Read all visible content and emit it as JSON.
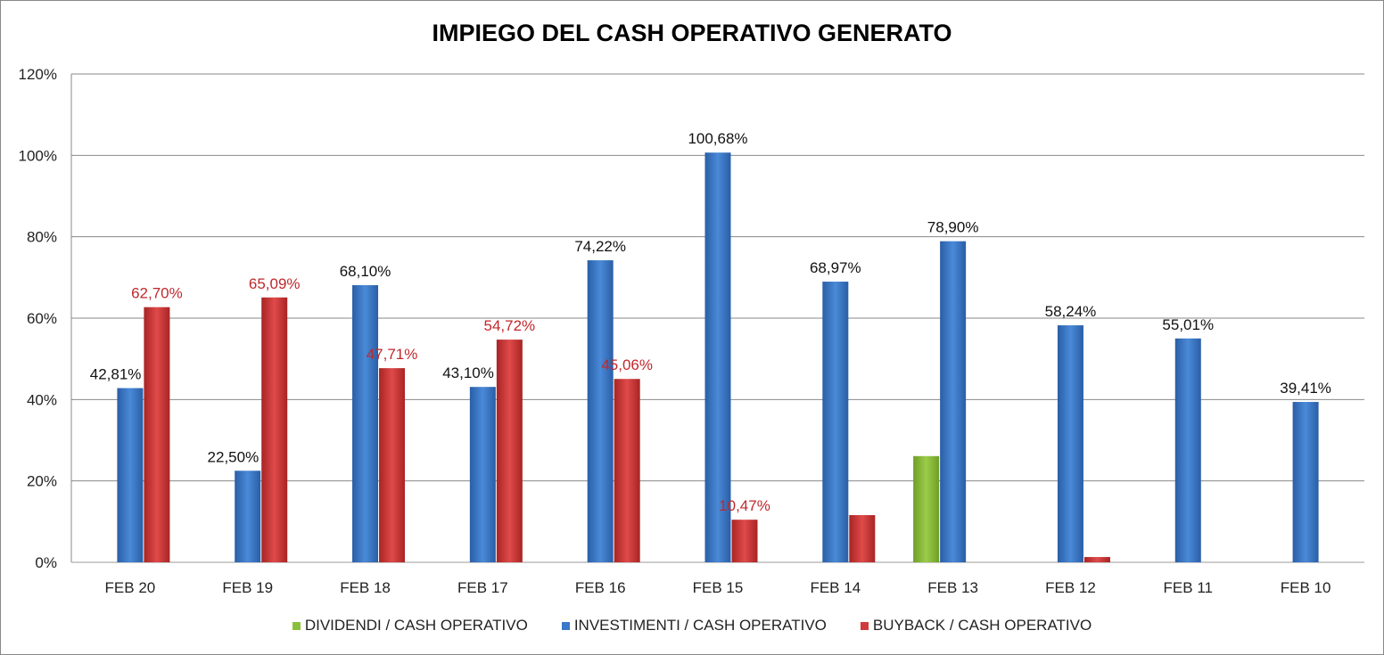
{
  "chart_data": {
    "type": "bar",
    "title": "IMPIEGO DEL CASH OPERATIVO GENERATO",
    "categories": [
      "FEB 20",
      "FEB 19",
      "FEB 18",
      "FEB 17",
      "FEB 16",
      "FEB 15",
      "FEB 14",
      "FEB 13",
      "FEB 12",
      "FEB 11",
      "FEB 10"
    ],
    "ylim": [
      0,
      120
    ],
    "yticks": [
      "0%",
      "20%",
      "40%",
      "60%",
      "80%",
      "100%",
      "120%"
    ],
    "grid": true,
    "legend_position": "bottom",
    "series": [
      {
        "name": "DIVIDENDI / CASH OPERATIVO",
        "color": "#8bc13a",
        "values": [
          0,
          0,
          0,
          0,
          0,
          0,
          0,
          26.1,
          0,
          0,
          0
        ],
        "labels": [
          "",
          "",
          "",
          "",
          "",
          "",
          "",
          "",
          "",
          "",
          ""
        ]
      },
      {
        "name": "INVESTIMENTI / CASH OPERATIVO",
        "color": "#3a78c8",
        "values": [
          42.81,
          22.5,
          68.1,
          43.1,
          74.22,
          100.68,
          68.97,
          78.9,
          58.24,
          55.01,
          39.41
        ],
        "labels": [
          "42,81%",
          "22,50%",
          "68,10%",
          "43,10%",
          "74,22%",
          "100,68%",
          "68,97%",
          "78,90%",
          "58,24%",
          "55,01%",
          "39,41%"
        ]
      },
      {
        "name": "BUYBACK /  CASH OPERATIVO",
        "color": "#d23b3b",
        "values": [
          62.7,
          65.09,
          47.71,
          54.72,
          45.06,
          10.47,
          11.6,
          0,
          1.3,
          0,
          0
        ],
        "labels": [
          "62,70%",
          "65,09%",
          "47,71%",
          "54,72%",
          "45,06%",
          "10,47%",
          "",
          "",
          "",
          "",
          ""
        ]
      }
    ]
  }
}
